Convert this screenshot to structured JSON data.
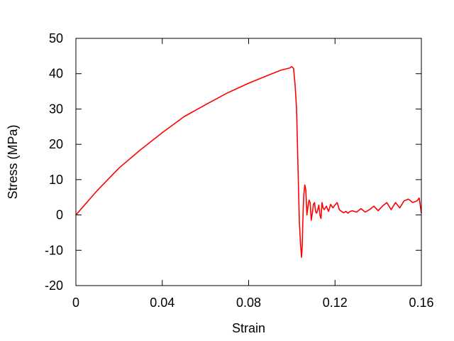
{
  "chart_data": {
    "type": "line",
    "title": "",
    "xlabel": "Strain",
    "ylabel": "Stress (MPa)",
    "xlim": [
      0,
      0.16
    ],
    "ylim": [
      -20,
      50
    ],
    "xticks": [
      0,
      0.04,
      0.08,
      0.12,
      0.16
    ],
    "xtick_labels": [
      "0",
      "0.04",
      "0.08",
      "0.12",
      "0.16"
    ],
    "yticks": [
      -20,
      -10,
      0,
      10,
      20,
      30,
      40,
      50
    ],
    "ytick_labels": [
      "-20",
      "-10",
      "0",
      "10",
      "20",
      "30",
      "40",
      "50"
    ],
    "grid": false,
    "legend": "none",
    "colors": {
      "series": "#ff0000",
      "axes": "#000000",
      "background": "#ffffff"
    },
    "series": [
      {
        "x": [
          0,
          0.005,
          0.01,
          0.02,
          0.03,
          0.04,
          0.05,
          0.06,
          0.07,
          0.08,
          0.09,
          0.095,
          0.099,
          0.1,
          0.1008,
          0.1015,
          0.1022,
          0.103,
          0.1035,
          0.104,
          0.1045,
          0.1048,
          0.105,
          0.1053,
          0.1056,
          0.106,
          0.1065,
          0.107,
          0.1075,
          0.108,
          0.1085,
          0.109,
          0.1095,
          0.11,
          0.1105,
          0.111,
          0.1115,
          0.112,
          0.1125,
          0.113,
          0.1135,
          0.114,
          0.1145,
          0.115,
          0.116,
          0.117,
          0.118,
          0.119,
          0.12,
          0.121,
          0.122,
          0.123,
          0.124,
          0.125,
          0.126,
          0.127,
          0.128,
          0.13,
          0.132,
          0.134,
          0.136,
          0.138,
          0.14,
          0.142,
          0.144,
          0.146,
          0.148,
          0.15,
          0.152,
          0.154,
          0.156,
          0.158,
          0.159,
          0.16
        ],
        "y": [
          0,
          3.5,
          7,
          13.3,
          18.5,
          23.3,
          27.8,
          31.2,
          34.5,
          37.3,
          39.8,
          41,
          41.6,
          42,
          41.5,
          37,
          30,
          10,
          -2,
          -8,
          -12,
          -9,
          -4,
          2,
          6,
          8.5,
          7,
          0,
          2.5,
          4.2,
          3.5,
          -1.5,
          0.5,
          3,
          3.5,
          1,
          0.5,
          1.5,
          2.8,
          0,
          -1,
          3.5,
          2,
          1.5,
          2.5,
          1,
          3,
          2,
          2.8,
          3.5,
          1.5,
          1,
          0.6,
          1,
          0.5,
          1,
          1.2,
          0.8,
          1.8,
          0.8,
          1.5,
          2.5,
          1.2,
          2.5,
          3.5,
          1.5,
          3.5,
          2,
          4,
          4.5,
          3.5,
          4,
          4.8,
          0.5
        ]
      }
    ]
  }
}
